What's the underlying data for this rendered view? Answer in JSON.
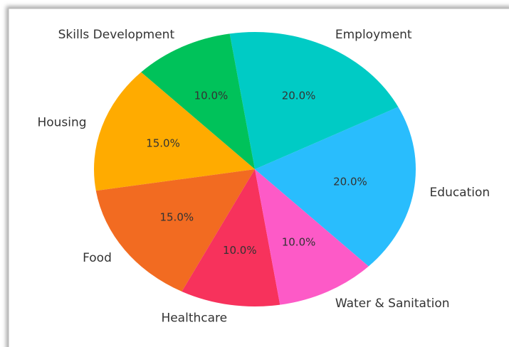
{
  "chart_data": {
    "type": "pie",
    "categories": [
      "Education",
      "Employment",
      "Skills Development",
      "Housing",
      "Food",
      "Healthcare",
      "Water & Sanitation"
    ],
    "values": [
      20,
      20,
      10,
      15,
      15,
      10,
      10
    ],
    "value_labels": [
      "20.0%",
      "20.0%",
      "10.0%",
      "15.0%",
      "15.0%",
      "10.0%",
      "10.0%"
    ],
    "colors": [
      "#29bdfd",
      "#00cbc5",
      "#00c25a",
      "#ffab00",
      "#f26b21",
      "#f7325c",
      "#fd5ac7"
    ]
  }
}
